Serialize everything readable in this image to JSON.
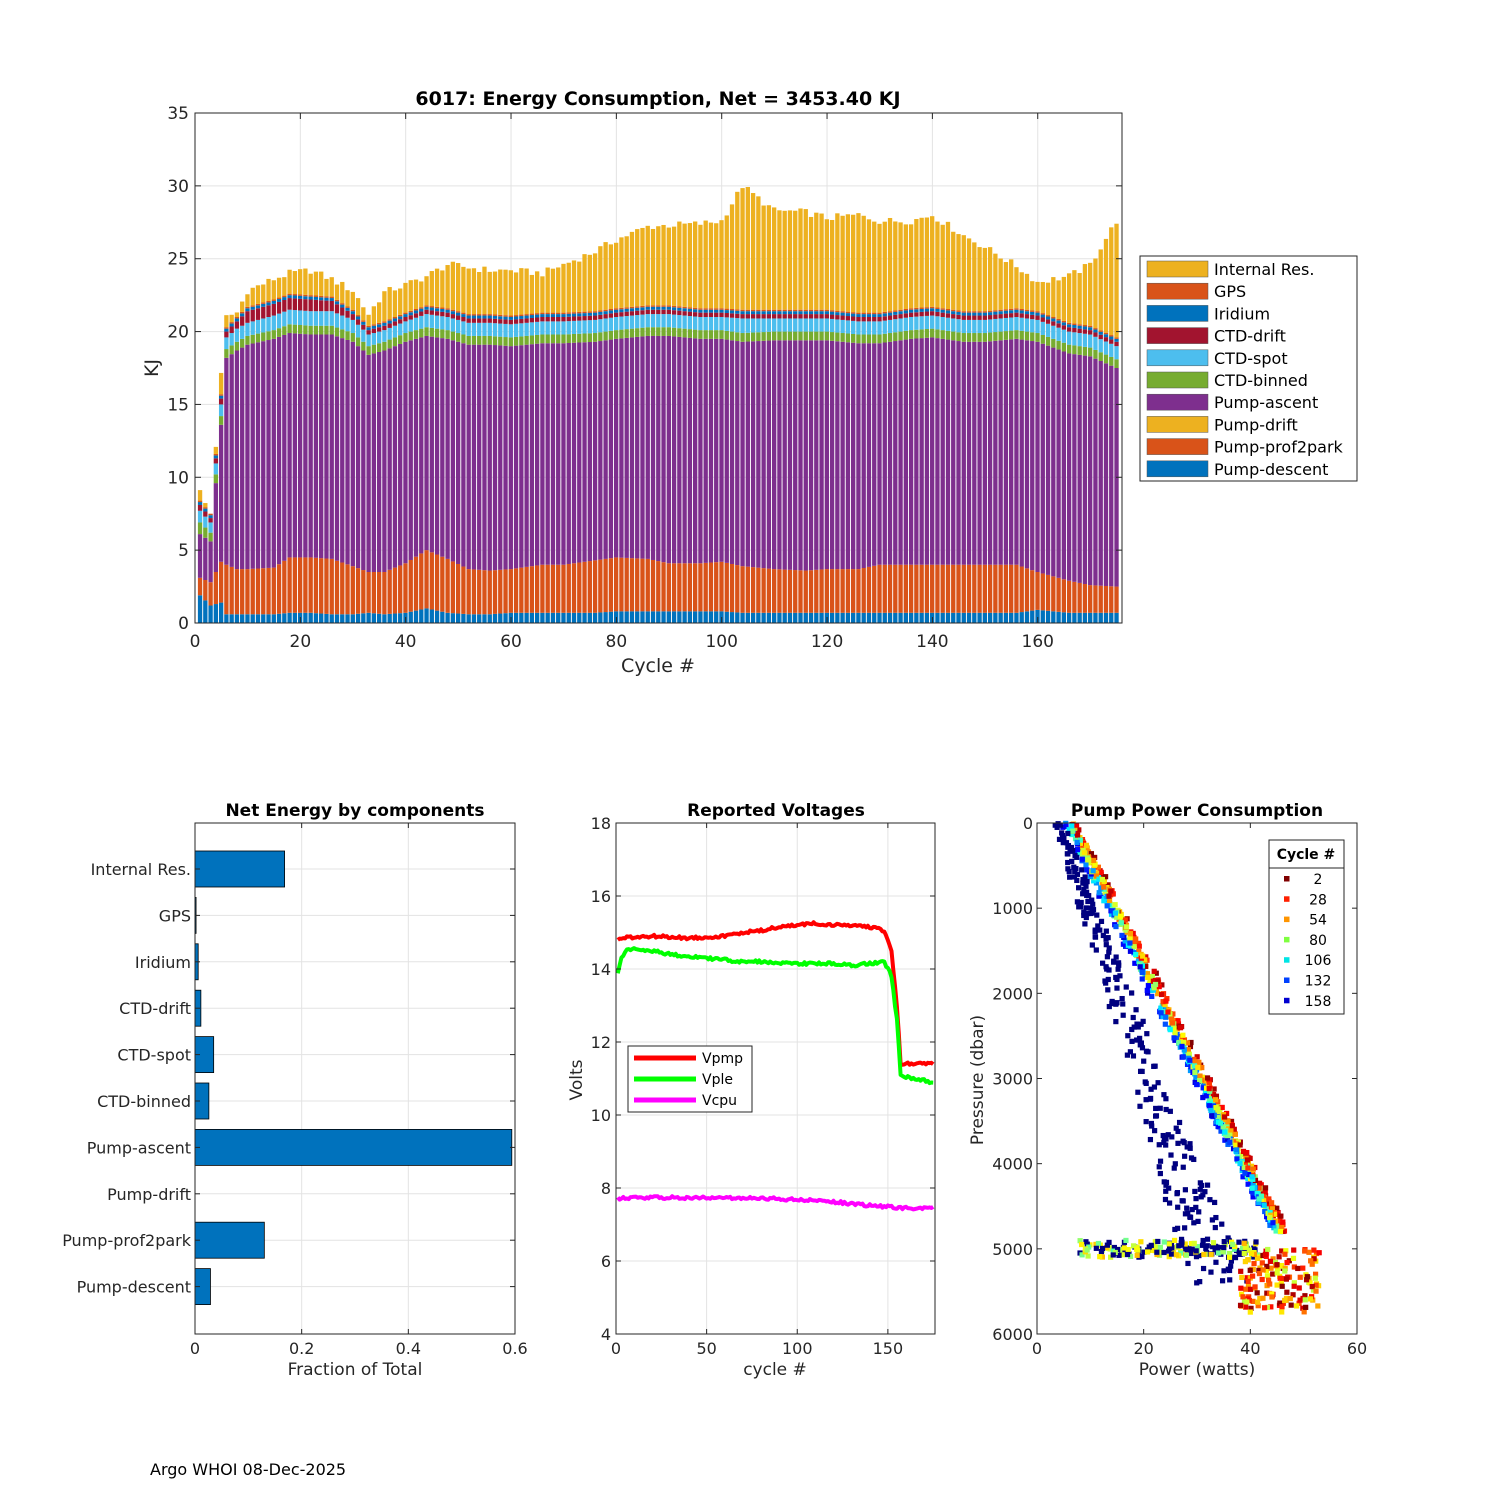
{
  "footer": "Argo WHOI 08-Dec-2025",
  "colors": {
    "internal_res": "#EDB120",
    "gps": "#D95319",
    "iridium": "#0072BD",
    "ctd_drift": "#A2142F",
    "ctd_spot": "#4DBEEE",
    "ctd_binned": "#77AC30",
    "pump_ascent": "#7E2F8E",
    "pump_drift": "#EDB120",
    "pump_prof2park": "#D95319",
    "pump_descent": "#0072BD",
    "vpmp": "#FF0000",
    "vple": "#00FF00",
    "vcpu": "#FF00FF",
    "bar_fill": "#0072BD"
  },
  "chart_data": [
    {
      "id": "energy",
      "type": "bar",
      "stacked": true,
      "title": "6017: Energy Consumption,  Net = 3453.40 KJ",
      "xlabel": "Cycle #",
      "ylabel": "KJ",
      "xlim": [
        0,
        176
      ],
      "ylim": [
        0,
        35
      ],
      "xticks": [
        0,
        20,
        40,
        60,
        80,
        100,
        120,
        140,
        160
      ],
      "yticks": [
        0,
        5,
        10,
        15,
        20,
        25,
        30,
        35
      ],
      "grid": true,
      "legend_position": "right",
      "legend": [
        "Internal Res.",
        "GPS",
        "Iridium",
        "CTD-drift",
        "CTD-spot",
        "CTD-binned",
        "Pump-ascent",
        "Pump-drift",
        "Pump-prof2park",
        "Pump-descent"
      ],
      "components_bottom_to_top": [
        "Pump-descent",
        "Pump-prof2park",
        "Pump-drift",
        "Pump-ascent",
        "CTD-binned",
        "CTD-spot",
        "CTD-drift",
        "Iridium",
        "GPS",
        "Internal Res."
      ],
      "cycles": "1-175",
      "keypoints": {
        "cycle": [
          1,
          3,
          5,
          6,
          8,
          10,
          15,
          18,
          22,
          26,
          30,
          33,
          36,
          40,
          44,
          48,
          52,
          56,
          60,
          66,
          70,
          76,
          80,
          86,
          90,
          96,
          100,
          104,
          110,
          116,
          120,
          126,
          130,
          136,
          140,
          146,
          150,
          156,
          160,
          166,
          170,
          175
        ],
        "total": [
          9.0,
          7.4,
          17.0,
          21.0,
          21.3,
          22.8,
          23.6,
          24.0,
          24.2,
          23.6,
          22.8,
          21.2,
          22.7,
          23.2,
          23.8,
          24.6,
          24.4,
          24.2,
          24.2,
          24.0,
          24.6,
          25.5,
          26.3,
          27.2,
          27.3,
          27.4,
          27.6,
          30.0,
          28.3,
          28.2,
          27.8,
          28.0,
          27.6,
          27.6,
          28.0,
          26.6,
          25.8,
          24.5,
          23.4,
          23.8,
          24.6,
          27.6
        ],
        "pump_descent": [
          1.9,
          1.2,
          1.4,
          0.6,
          0.6,
          0.6,
          0.6,
          0.7,
          0.7,
          0.6,
          0.6,
          0.7,
          0.6,
          0.7,
          1.0,
          0.7,
          0.6,
          0.6,
          0.7,
          0.7,
          0.7,
          0.7,
          0.8,
          0.8,
          0.8,
          0.8,
          0.8,
          0.7,
          0.7,
          0.7,
          0.7,
          0.7,
          0.7,
          0.7,
          0.7,
          0.7,
          0.7,
          0.7,
          0.9,
          0.7,
          0.7,
          0.7
        ],
        "pump_prof2park": [
          1.2,
          1.6,
          2.8,
          3.4,
          3.1,
          3.1,
          3.2,
          3.8,
          3.8,
          3.8,
          3.3,
          2.8,
          2.9,
          3.4,
          4.0,
          3.7,
          3.1,
          3.0,
          3.0,
          3.3,
          3.3,
          3.6,
          3.7,
          3.6,
          3.3,
          3.3,
          3.4,
          3.2,
          3.0,
          2.9,
          3.0,
          3.0,
          3.3,
          3.3,
          3.3,
          3.3,
          3.3,
          3.3,
          2.6,
          2.2,
          1.9,
          1.8
        ],
        "pump_ascent": [
          3.0,
          2.8,
          9.4,
          14.2,
          15.0,
          15.4,
          15.7,
          15.4,
          15.3,
          15.4,
          15.4,
          14.9,
          15.2,
          15.2,
          14.7,
          15.1,
          15.4,
          15.5,
          15.3,
          15.2,
          15.2,
          15.0,
          15.0,
          15.3,
          15.6,
          15.4,
          15.3,
          15.4,
          15.7,
          15.8,
          15.7,
          15.5,
          15.2,
          15.5,
          15.6,
          15.3,
          15.3,
          15.5,
          15.8,
          15.6,
          15.7,
          15.0
        ],
        "ctd_binned": [
          0.8,
          0.6,
          0.6,
          0.6,
          0.6,
          0.6,
          0.6,
          0.6,
          0.6,
          0.6,
          0.6,
          0.6,
          0.6,
          0.6,
          0.6,
          0.6,
          0.6,
          0.6,
          0.6,
          0.6,
          0.6,
          0.6,
          0.6,
          0.6,
          0.6,
          0.6,
          0.6,
          0.6,
          0.6,
          0.6,
          0.6,
          0.6,
          0.6,
          0.6,
          0.6,
          0.6,
          0.6,
          0.6,
          0.6,
          0.6,
          0.6,
          0.6
        ],
        "ctd_spot": [
          0.8,
          0.7,
          0.8,
          0.8,
          0.9,
          0.9,
          1.0,
          1.0,
          1.0,
          1.0,
          0.9,
          0.8,
          0.8,
          0.8,
          0.9,
          0.9,
          0.9,
          0.9,
          0.9,
          0.9,
          0.9,
          0.9,
          0.9,
          0.9,
          0.9,
          0.9,
          0.9,
          1.0,
          0.9,
          0.9,
          0.9,
          0.9,
          0.9,
          0.9,
          0.9,
          0.9,
          0.9,
          0.9,
          0.9,
          0.9,
          0.9,
          0.9
        ],
        "ctd_drift": [
          0.4,
          0.3,
          0.4,
          0.4,
          0.5,
          0.8,
          0.8,
          0.8,
          0.8,
          0.7,
          0.4,
          0.3,
          0.3,
          0.3,
          0.3,
          0.3,
          0.3,
          0.3,
          0.3,
          0.3,
          0.3,
          0.3,
          0.3,
          0.3,
          0.3,
          0.3,
          0.3,
          0.3,
          0.3,
          0.3,
          0.3,
          0.3,
          0.3,
          0.3,
          0.3,
          0.3,
          0.3,
          0.3,
          0.3,
          0.3,
          0.3,
          0.3
        ],
        "iridium": [
          0.2,
          0.2,
          0.2,
          0.2,
          0.2,
          0.2,
          0.2,
          0.2,
          0.2,
          0.2,
          0.2,
          0.2,
          0.2,
          0.2,
          0.2,
          0.2,
          0.2,
          0.2,
          0.2,
          0.2,
          0.2,
          0.2,
          0.2,
          0.2,
          0.2,
          0.2,
          0.2,
          0.2,
          0.2,
          0.2,
          0.2,
          0.2,
          0.2,
          0.2,
          0.2,
          0.2,
          0.2,
          0.2,
          0.2,
          0.2,
          0.2,
          0.2
        ],
        "gps": [
          0.1,
          0.1,
          0.1,
          0.1,
          0.1,
          0.1,
          0.1,
          0.1,
          0.1,
          0.1,
          0.1,
          0.1,
          0.1,
          0.1,
          0.1,
          0.1,
          0.1,
          0.1,
          0.1,
          0.1,
          0.1,
          0.1,
          0.1,
          0.1,
          0.1,
          0.1,
          0.1,
          0.1,
          0.1,
          0.1,
          0.1,
          0.1,
          0.1,
          0.1,
          0.1,
          0.1,
          0.1,
          0.1,
          0.1,
          0.1,
          0.1,
          0.1
        ]
      }
    },
    {
      "id": "net",
      "type": "barh",
      "title": "Net Energy by components",
      "xlabel": "Fraction of Total",
      "xlim": [
        0,
        0.6
      ],
      "xticks": [
        0,
        0.2,
        0.4,
        0.6
      ],
      "xticklabels": [
        "0",
        "0.2",
        "0.4",
        "0.6"
      ],
      "grid": true,
      "categories": [
        "Internal Res.",
        "GPS",
        "Iridium",
        "CTD-drift",
        "CTD-spot",
        "CTD-binned",
        "Pump-ascent",
        "Pump-drift",
        "Pump-prof2park",
        "Pump-descent"
      ],
      "values": [
        0.168,
        0.002,
        0.006,
        0.011,
        0.035,
        0.026,
        0.594,
        0.0,
        0.13,
        0.029
      ]
    },
    {
      "id": "voltages",
      "type": "line",
      "title": "Reported Voltages",
      "xlabel": "cycle #",
      "ylabel": "Volts",
      "xlim": [
        0,
        176
      ],
      "ylim": [
        4,
        18
      ],
      "xticks": [
        0,
        50,
        100,
        150
      ],
      "yticks": [
        4,
        6,
        8,
        10,
        12,
        14,
        16,
        18
      ],
      "grid": true,
      "legend_position": "center-left",
      "series": [
        {
          "name": "Vpmp",
          "x": [
            1,
            5,
            20,
            40,
            60,
            70,
            80,
            90,
            100,
            110,
            120,
            130,
            140,
            148,
            152,
            155,
            157,
            160,
            165,
            175
          ],
          "y": [
            14.8,
            14.85,
            14.9,
            14.85,
            14.9,
            15.0,
            15.05,
            15.15,
            15.2,
            15.25,
            15.2,
            15.2,
            15.15,
            15.05,
            14.5,
            13.0,
            11.4,
            11.4,
            11.4,
            11.4
          ]
        },
        {
          "name": "Vple",
          "x": [
            1,
            3,
            6,
            10,
            20,
            30,
            40,
            50,
            60,
            70,
            80,
            100,
            120,
            130,
            140,
            148,
            152,
            155,
            157,
            160,
            165,
            170,
            175
          ],
          "y": [
            13.9,
            14.3,
            14.5,
            14.55,
            14.5,
            14.4,
            14.35,
            14.3,
            14.25,
            14.2,
            14.2,
            14.15,
            14.15,
            14.1,
            14.15,
            14.2,
            13.8,
            12.6,
            11.1,
            11.05,
            11.0,
            10.95,
            10.85
          ]
        },
        {
          "name": "Vcpu",
          "x": [
            1,
            20,
            50,
            80,
            100,
            120,
            140,
            160,
            175
          ],
          "y": [
            7.72,
            7.74,
            7.73,
            7.72,
            7.68,
            7.62,
            7.52,
            7.45,
            7.45
          ]
        }
      ]
    },
    {
      "id": "pump",
      "type": "scatter",
      "title": "Pump Power Consumption",
      "xlabel": "Power (watts)",
      "ylabel": "Pressure (dbar)",
      "xlim": [
        0,
        60
      ],
      "ylim": [
        0,
        6000
      ],
      "y_reversed": true,
      "xticks": [
        0,
        20,
        40,
        60
      ],
      "yticks": [
        0,
        1000,
        2000,
        3000,
        4000,
        5000,
        6000
      ],
      "grid": false,
      "legend_title": "Cycle #",
      "legend_position": "top-right",
      "legend_cycles": [
        2,
        28,
        54,
        80,
        106,
        132,
        158
      ],
      "legend_colors": [
        "#800000",
        "#FF2000",
        "#FF9500",
        "#7FFF40",
        "#00E5E5",
        "#0040FF",
        "#0000D0"
      ],
      "colormap": "jet",
      "descent_line": {
        "power_at_0": 5.0,
        "power_at_4500": 42.0,
        "pressure_max": 5800
      },
      "slow_descent_line": {
        "power_at_0": 4.0,
        "power_at_5000": 32.0
      },
      "park_cluster": {
        "pressure": 5000,
        "power_range": [
          8,
          42
        ]
      },
      "deep_cluster": {
        "pressure_range": [
          5000,
          5750
        ],
        "power_range": [
          38,
          53
        ]
      }
    }
  ]
}
